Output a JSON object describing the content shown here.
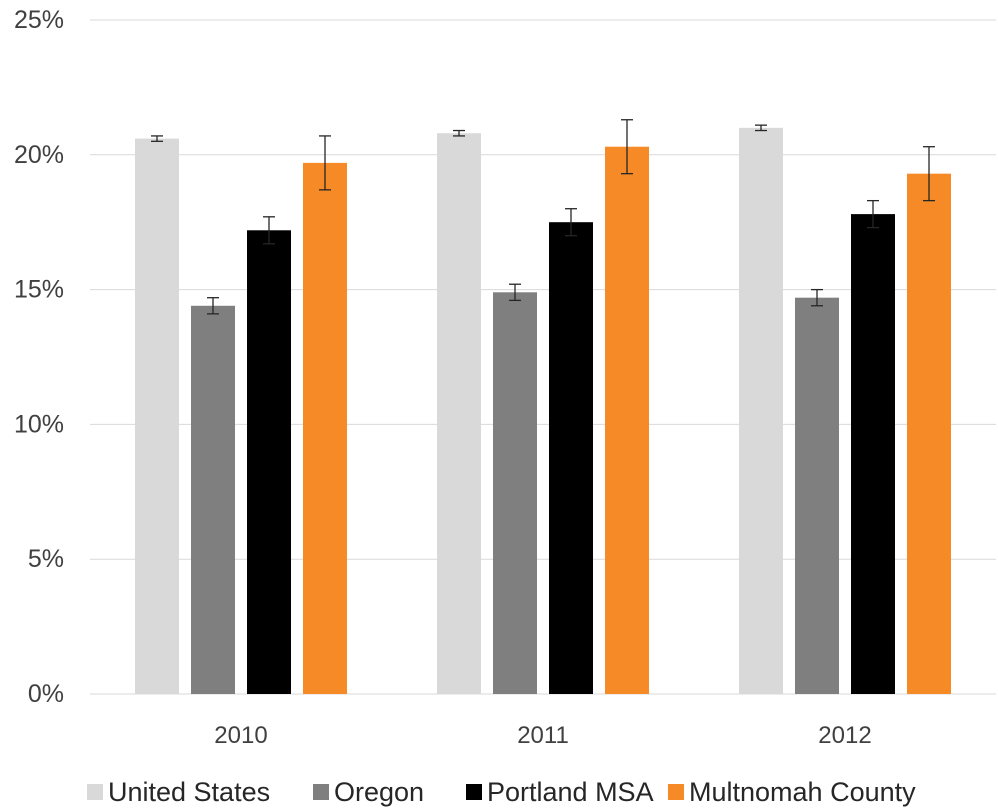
{
  "chart_data": {
    "type": "bar",
    "title": "",
    "xlabel": "",
    "ylabel": "",
    "ylim": [
      0,
      25
    ],
    "y_ticks": [
      "0%",
      "5%",
      "10%",
      "15%",
      "20%",
      "25%"
    ],
    "y_tick_values": [
      0,
      5,
      10,
      15,
      20,
      25
    ],
    "grid": true,
    "legend_position": "bottom",
    "categories": [
      "2010",
      "2011",
      "2012"
    ],
    "series": [
      {
        "name": "United States",
        "color": "#d9d9d9",
        "values": [
          20.6,
          20.8,
          21.0
        ],
        "error": [
          0.1,
          0.1,
          0.1
        ]
      },
      {
        "name": "Oregon",
        "color": "#7f7f7f",
        "values": [
          14.4,
          14.9,
          14.7
        ],
        "error": [
          0.3,
          0.3,
          0.3
        ]
      },
      {
        "name": "Portland MSA",
        "color": "#000000",
        "values": [
          17.2,
          17.5,
          17.8
        ],
        "error": [
          0.5,
          0.5,
          0.5
        ]
      },
      {
        "name": "Multnomah County",
        "color": "#f58a27",
        "values": [
          19.7,
          20.3,
          19.3
        ],
        "error": [
          1.0,
          1.0,
          1.0
        ]
      }
    ]
  }
}
